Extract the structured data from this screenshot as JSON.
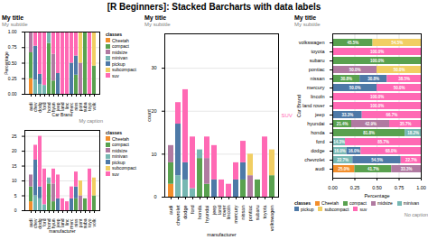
{
  "title": "[R Beginners]: Stacked Barcharts with data labels",
  "chart_data": [
    {
      "type": "bar",
      "stacked": true,
      "title": "My title",
      "subtitle": "My subtitle",
      "caption": "My caption",
      "xlabel": "Car Brand",
      "ylabel": "Percentage",
      "categories": [
        "audi",
        "chev",
        "dodg",
        "ford",
        "hond",
        "hyun",
        "jeep",
        "land",
        "linc",
        "merc",
        "niss",
        "pont",
        "suba",
        "toyo",
        "volk"
      ],
      "series": [
        {
          "name": "Cheetah",
          "color": "#F28E2B",
          "values": [
            0.25,
            0,
            0,
            0,
            0,
            0,
            0,
            0,
            0,
            0,
            0,
            0,
            0,
            0,
            0
          ]
        },
        {
          "name": "compact",
          "color": "#59A14F",
          "values": [
            0.4166666666666667,
            0,
            0,
            0,
            0.8181818181818182,
            0.21428571428571427,
            0,
            0,
            0,
            0,
            0.3076923076923077,
            0,
            1,
            0,
            0.45454545454545453
          ]
        },
        {
          "name": "midsize",
          "color": "#B07AA1",
          "values": [
            0.3333333333333333,
            0,
            0,
            0,
            0,
            0.42857142857142855,
            0,
            0,
            0,
            0,
            0,
            0.5,
            0,
            0,
            0
          ]
        },
        {
          "name": "minivan",
          "color": "#76B7B2",
          "values": [
            0,
            0.2272727272727273,
            0.16,
            0.14285714285714285,
            0.18181818181818182,
            0,
            0,
            0,
            0,
            0,
            0,
            0,
            0,
            0,
            0
          ]
        },
        {
          "name": "pickup",
          "color": "#4E79A7",
          "values": [
            0,
            0.5454545454545454,
            0.16,
            0,
            0,
            0,
            0.3333333333333333,
            0,
            0,
            0.5,
            0.3076923076923077,
            0,
            0,
            0,
            0
          ]
        },
        {
          "name": "subcompact",
          "color": "#F1CE63",
          "values": [
            0,
            0,
            0,
            0,
            0,
            0,
            0,
            0,
            0,
            0,
            0,
            0.5,
            0,
            0,
            0.5454545454545454
          ]
        },
        {
          "name": "suv",
          "color": "#FF69B4",
          "values": [
            0,
            0.2272727272727273,
            0.68,
            0.8571428571428571,
            0,
            0.35714285714285715,
            0.6666666666666666,
            1,
            1,
            0.5,
            0.38461538461538464,
            0,
            0,
            1,
            0
          ]
        }
      ],
      "ylim": [
        0,
        1
      ],
      "yticks": [
        {
          "value": 0,
          "label": "0.00"
        },
        0.25,
        {
          "value": 0.5,
          "label": "0.50"
        },
        0.75,
        {
          "value": 1,
          "label": "1.00"
        }
      ],
      "grid": true,
      "legend": "right",
      "legend_title": "classes"
    },
    {
      "type": "bar",
      "stacked": true,
      "xlabel": "manufacturer",
      "categories": [
        "audi",
        "chev",
        "dodg",
        "ford",
        "hond",
        "hyun",
        "jeep",
        "land",
        "linc",
        "merc",
        "niss",
        "pont",
        "suba",
        "toyo",
        "volk"
      ],
      "series": [
        {
          "name": "Cheetah",
          "color": "#F28E2B",
          "values": [
            3,
            0,
            0,
            0,
            0,
            0,
            0,
            0,
            0,
            0,
            0,
            0,
            0,
            0,
            0
          ]
        },
        {
          "name": "compact",
          "color": "#59A14F",
          "values": [
            5,
            0,
            0,
            0,
            9,
            3,
            0,
            0,
            0,
            0,
            4,
            0,
            4,
            0,
            5
          ]
        },
        {
          "name": "midsize",
          "color": "#B07AA1",
          "values": [
            4,
            0,
            0,
            0,
            0,
            6,
            0,
            0,
            0,
            0,
            0,
            5,
            0,
            0,
            0
          ]
        },
        {
          "name": "minivan",
          "color": "#76B7B2",
          "values": [
            0,
            5,
            4,
            2,
            2,
            0,
            0,
            0,
            0,
            0,
            0,
            0,
            0,
            0,
            0
          ]
        },
        {
          "name": "pickup",
          "color": "#4E79A7",
          "values": [
            0,
            12,
            4,
            0,
            0,
            0,
            4,
            0,
            0,
            4,
            4,
            0,
            0,
            0,
            0
          ]
        },
        {
          "name": "subcompact",
          "color": "#F1CE63",
          "values": [
            0,
            0,
            0,
            0,
            0,
            0,
            0,
            0,
            0,
            0,
            0,
            5,
            0,
            0,
            6
          ]
        },
        {
          "name": "suv",
          "color": "#FF69B4",
          "values": [
            0,
            5,
            17,
            12,
            0,
            5,
            8,
            4,
            3,
            4,
            5,
            0,
            0,
            14,
            0
          ]
        }
      ],
      "ylim": [
        0,
        27
      ],
      "yticks": [
        0,
        5,
        10,
        15,
        20,
        25
      ],
      "grid": true,
      "legend": "right",
      "legend_title": "classes"
    },
    {
      "type": "bar",
      "stacked": true,
      "title": "My title",
      "subtitle": "My subtitle",
      "xlabel": "manufacturer",
      "ylabel": "count",
      "categories": [
        "audi",
        "chevrolet",
        "dodge",
        "ford",
        "honda",
        "hyundai",
        "jeep",
        "land\nrover",
        "lincoln",
        "mercury",
        "nissan",
        "pontiac",
        "subaru",
        "toyota",
        "volkswagen"
      ],
      "series": [
        {
          "name": "Cheetah",
          "color": "#F28E2B",
          "values": [
            3,
            0,
            0,
            0,
            0,
            0,
            0,
            0,
            0,
            0,
            0,
            0,
            0,
            0,
            0
          ]
        },
        {
          "name": "compact",
          "color": "#59A14F",
          "values": [
            5,
            0,
            0,
            0,
            9,
            3,
            0,
            0,
            0,
            0,
            4,
            0,
            4,
            0,
            5
          ]
        },
        {
          "name": "midsize",
          "color": "#B07AA1",
          "values": [
            4,
            0,
            0,
            0,
            0,
            6,
            0,
            0,
            0,
            0,
            0,
            5,
            0,
            0,
            0
          ]
        },
        {
          "name": "minivan",
          "color": "#76B7B2",
          "values": [
            0,
            5,
            4,
            2,
            2,
            0,
            0,
            0,
            0,
            0,
            0,
            0,
            0,
            0,
            0
          ]
        },
        {
          "name": "pickup",
          "color": "#4E79A7",
          "values": [
            0,
            12,
            4,
            0,
            0,
            0,
            4,
            0,
            0,
            4,
            4,
            0,
            0,
            0,
            0
          ]
        },
        {
          "name": "subcompact",
          "color": "#F1CE63",
          "values": [
            0,
            0,
            0,
            0,
            0,
            0,
            0,
            0,
            0,
            0,
            0,
            5,
            0,
            0,
            6
          ]
        },
        {
          "name": "suv",
          "color": "#FF69B4",
          "values": [
            0,
            5,
            17,
            12,
            0,
            5,
            8,
            4,
            3,
            4,
            5,
            0,
            0,
            14,
            0
          ]
        }
      ],
      "ylim": [
        0,
        38
      ],
      "yticks": [
        0,
        10,
        20,
        30
      ],
      "grid": true,
      "annotations": [
        {
          "text": "SUV",
          "color": "#FF69B4"
        }
      ]
    },
    {
      "type": "bar",
      "stacked": true,
      "orientation": "horizontal",
      "data_labels": true,
      "title": "My title",
      "subtitle": "My subtitle",
      "caption": "No caption",
      "xlabel": "Percentage",
      "ylabel": "Car Brand",
      "categories": [
        "audi",
        "chevrolet",
        "dodge",
        "ford",
        "honda",
        "hyundai",
        "jeep",
        "land rover",
        "lincoln",
        "mercury",
        "nissan",
        "pontiac",
        "subaru",
        "toyota",
        "volkswagen"
      ],
      "series": [
        {
          "name": "Cheetah",
          "color": "#F28E2B",
          "values": [
            0.25,
            0,
            0,
            0,
            0,
            0,
            0,
            0,
            0,
            0,
            0,
            0,
            0,
            0,
            0
          ],
          "value_labels": [
            "25.0%",
            null,
            null,
            null,
            null,
            null,
            null,
            null,
            null,
            null,
            null,
            null,
            null,
            null,
            null
          ]
        },
        {
          "name": "compact",
          "color": "#59A14F",
          "values": [
            0.4166666666666667,
            0,
            0,
            0,
            0.8181818181818182,
            0.21428571428571427,
            0,
            0,
            0,
            0,
            0.3076923076923077,
            0,
            1,
            0,
            0.45454545454545453
          ],
          "value_labels": [
            "41.7%",
            null,
            null,
            null,
            "81.8%",
            "21.4%",
            null,
            null,
            null,
            null,
            "30.8%",
            null,
            "100.0%",
            null,
            "45.5%"
          ]
        },
        {
          "name": "midsize",
          "color": "#B07AA1",
          "values": [
            0.3333333333333333,
            0,
            0,
            0,
            0,
            0.42857142857142855,
            0,
            0,
            0,
            0,
            0,
            0.5,
            0,
            0,
            0
          ],
          "value_labels": [
            "33.3%",
            null,
            null,
            null,
            null,
            "42.9%",
            null,
            null,
            null,
            null,
            null,
            "50.0%",
            null,
            null,
            null
          ]
        },
        {
          "name": "minivan",
          "color": "#76B7B2",
          "values": [
            0,
            0.2272727272727273,
            0.16,
            0.14285714285714285,
            0.18181818181818182,
            0,
            0,
            0,
            0,
            0,
            0,
            0,
            0,
            0,
            0
          ],
          "value_labels": [
            null,
            "22.7%",
            "16.0%",
            "14.3%",
            "18.2%",
            null,
            null,
            null,
            null,
            null,
            null,
            null,
            null,
            null,
            null
          ]
        },
        {
          "name": "pickup",
          "color": "#4E79A7",
          "values": [
            0,
            0.5454545454545454,
            0.16,
            0,
            0,
            0,
            0.3333333333333333,
            0,
            0,
            0.5,
            0.3076923076923077,
            0,
            0,
            0,
            0
          ],
          "value_labels": [
            null,
            "54.5%",
            "16.0%",
            null,
            null,
            null,
            "33.3%",
            null,
            null,
            "50.0%",
            "30.8%",
            null,
            null,
            null,
            null
          ]
        },
        {
          "name": "subcompact",
          "color": "#F1CE63",
          "values": [
            0,
            0,
            0,
            0,
            0,
            0,
            0,
            0,
            0,
            0,
            0,
            0.5,
            0,
            0,
            0.5454545454545454
          ],
          "value_labels": [
            null,
            null,
            null,
            null,
            null,
            null,
            null,
            null,
            null,
            null,
            null,
            "50.0%",
            null,
            null,
            "54.5%"
          ]
        },
        {
          "name": "suv",
          "color": "#FF69B4",
          "values": [
            0,
            0.2272727272727273,
            0.68,
            0.8571428571428571,
            0,
            0.35714285714285715,
            0.6666666666666666,
            1,
            1,
            0.5,
            0.38461538461538464,
            0,
            0,
            1,
            0
          ],
          "value_labels": [
            null,
            "22.7%",
            "68.0%",
            "85.7%",
            null,
            "35.7%",
            "66.7%",
            "100.0%",
            "100.0%",
            "50.0%",
            "38.5%",
            null,
            null,
            "100.0%",
            null
          ]
        }
      ],
      "xlim": [
        0,
        1
      ],
      "xticks": [
        {
          "value": 0,
          "label": "0.00"
        },
        0.25,
        {
          "value": 0.5,
          "label": "0.50"
        },
        0.75,
        {
          "value": 1,
          "label": "1.00"
        }
      ],
      "grid": true,
      "legend": "bottom",
      "legend_title": "classes"
    }
  ]
}
